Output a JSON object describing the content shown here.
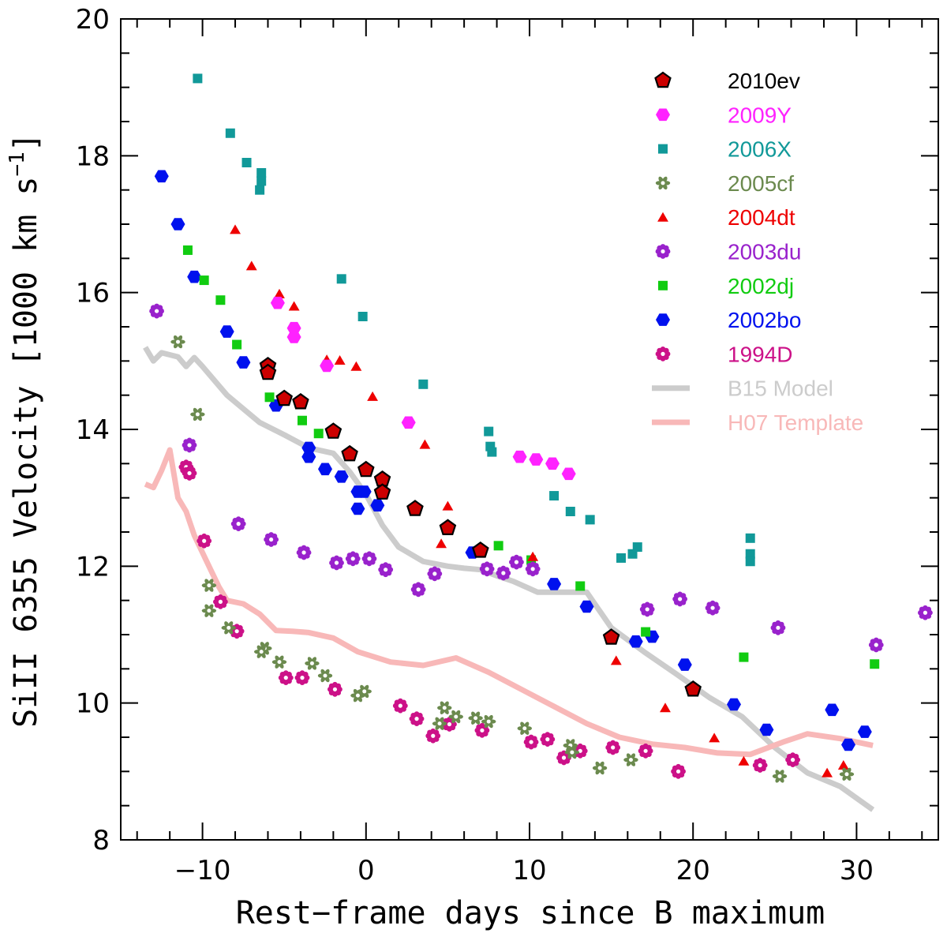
{
  "chart_data": {
    "type": "scatter",
    "xlabel": "Rest−frame days since B maximum",
    "ylabel_main": "SiII 6355 Velocity [1000 km s",
    "ylabel_sup": "−1",
    "ylabel_close": "]",
    "xlim": [
      -15,
      35
    ],
    "ylim": [
      8,
      20
    ],
    "x_ticks": [
      -10,
      0,
      10,
      20,
      30
    ],
    "y_ticks": [
      8,
      10,
      12,
      14,
      16,
      18,
      20
    ],
    "x_tick_labels": [
      "−10",
      "0",
      "10",
      "20",
      "30"
    ],
    "y_tick_labels": [
      "8",
      "10",
      "12",
      "14",
      "16",
      "18",
      "20"
    ],
    "legend_position": "top-right",
    "series": [
      {
        "name": "2010ev",
        "marker": "pentagon",
        "color": "#cc0000",
        "stroke": "#000000",
        "label_color": "#000000",
        "points": [
          [
            -6,
            14.93
          ],
          [
            -6,
            14.83
          ],
          [
            -5,
            14.45
          ],
          [
            -4,
            14.4
          ],
          [
            -2,
            13.97
          ],
          [
            -1,
            13.64
          ],
          [
            0,
            13.41
          ],
          [
            1,
            13.27
          ],
          [
            1,
            13.08
          ],
          [
            3,
            12.84
          ],
          [
            5,
            12.56
          ],
          [
            7,
            12.23
          ],
          [
            15,
            10.96
          ],
          [
            20,
            10.2
          ]
        ]
      },
      {
        "name": "2009Y",
        "marker": "hexagon",
        "color": "#ff22ff",
        "label_color": "#ff22ff",
        "points": [
          [
            -5.4,
            15.85
          ],
          [
            -4.4,
            15.48
          ],
          [
            -4.4,
            15.35
          ],
          [
            -2.4,
            14.93
          ],
          [
            2.6,
            14.1
          ],
          [
            9.4,
            13.6
          ],
          [
            10.4,
            13.56
          ],
          [
            11.4,
            13.5
          ],
          [
            12.4,
            13.35
          ]
        ]
      },
      {
        "name": "2006X",
        "marker": "square",
        "color": "#119999",
        "label_color": "#119999",
        "points": [
          [
            -10.3,
            19.13
          ],
          [
            -8.3,
            18.33
          ],
          [
            -7.3,
            17.9
          ],
          [
            -6.4,
            17.75
          ],
          [
            -6.4,
            17.63
          ],
          [
            -6.5,
            17.5
          ],
          [
            -1.5,
            16.2
          ],
          [
            -0.2,
            15.65
          ],
          [
            3.5,
            14.66
          ],
          [
            7.5,
            13.97
          ],
          [
            7.6,
            13.75
          ],
          [
            7.7,
            13.67
          ],
          [
            11.5,
            13.03
          ],
          [
            12.5,
            12.8
          ],
          [
            13.7,
            12.68
          ],
          [
            15.6,
            12.12
          ],
          [
            16.3,
            12.18
          ],
          [
            16.6,
            12.28
          ],
          [
            23.5,
            12.41
          ],
          [
            23.5,
            12.18
          ],
          [
            23.5,
            12.07
          ]
        ]
      },
      {
        "name": "2005cf",
        "marker": "star",
        "color": "#6b8a4e",
        "label_color": "#6b8a4e",
        "points": [
          [
            -11.5,
            15.28
          ],
          [
            -10.3,
            14.22
          ],
          [
            -9.6,
            11.72
          ],
          [
            -9.6,
            11.35
          ],
          [
            -8.4,
            11.1
          ],
          [
            -6.2,
            10.8
          ],
          [
            -6.4,
            10.75
          ],
          [
            -5.3,
            10.6
          ],
          [
            -3.3,
            10.58
          ],
          [
            -2.5,
            10.4
          ],
          [
            -0.5,
            10.11
          ],
          [
            -0.1,
            10.17
          ],
          [
            4.5,
            9.7
          ],
          [
            4.8,
            9.93
          ],
          [
            5.5,
            9.8
          ],
          [
            6.7,
            9.78
          ],
          [
            7.5,
            9.73
          ],
          [
            9.7,
            9.63
          ],
          [
            12.5,
            9.38
          ],
          [
            12.6,
            9.28
          ],
          [
            14.3,
            9.05
          ],
          [
            16.2,
            9.17
          ],
          [
            25.3,
            8.93
          ],
          [
            29.4,
            8.96
          ]
        ]
      },
      {
        "name": "2004dt",
        "marker": "triangle",
        "color": "#ee0000",
        "label_color": "#ee0000",
        "points": [
          [
            -8,
            16.92
          ],
          [
            -7,
            16.39
          ],
          [
            -5.3,
            15.98
          ],
          [
            -4.4,
            15.8
          ],
          [
            -2.4,
            15.02
          ],
          [
            -1.6,
            15.01
          ],
          [
            -0.6,
            14.92
          ],
          [
            0.4,
            14.48
          ],
          [
            3.6,
            13.78
          ],
          [
            5,
            12.88
          ],
          [
            4.6,
            12.33
          ],
          [
            10.2,
            12.14
          ],
          [
            15.3,
            10.62
          ],
          [
            18.3,
            9.93
          ],
          [
            21.3,
            9.49
          ],
          [
            23.1,
            9.15
          ],
          [
            28.2,
            8.98
          ],
          [
            29.2,
            9.09
          ]
        ]
      },
      {
        "name": "2003du",
        "marker": "flower",
        "color": "#9922cc",
        "label_color": "#9922cc",
        "points": [
          [
            -12.8,
            15.73
          ],
          [
            -10.8,
            13.77
          ],
          [
            -7.8,
            12.62
          ],
          [
            -5.8,
            12.39
          ],
          [
            -3.8,
            12.2
          ],
          [
            -1.8,
            12.05
          ],
          [
            -0.8,
            12.11
          ],
          [
            0.2,
            12.11
          ],
          [
            1.2,
            11.95
          ],
          [
            3.2,
            11.66
          ],
          [
            4.2,
            11.89
          ],
          [
            7.4,
            11.96
          ],
          [
            8.4,
            11.9
          ],
          [
            9.2,
            12.06
          ],
          [
            10.2,
            11.96
          ],
          [
            17.2,
            11.37
          ],
          [
            19.2,
            11.52
          ],
          [
            21.2,
            11.39
          ],
          [
            25.2,
            11.1
          ],
          [
            31.2,
            10.85
          ],
          [
            34.2,
            11.32
          ]
        ]
      },
      {
        "name": "2002dj",
        "marker": "square",
        "color": "#11cc11",
        "label_color": "#11cc11",
        "points": [
          [
            -10.9,
            16.62
          ],
          [
            -9.9,
            16.18
          ],
          [
            -8.9,
            15.89
          ],
          [
            -7.9,
            15.24
          ],
          [
            -5.9,
            14.47
          ],
          [
            -3.9,
            14.13
          ],
          [
            -2.9,
            13.94
          ],
          [
            8.1,
            12.3
          ],
          [
            10.1,
            12.09
          ],
          [
            13.1,
            11.71
          ],
          [
            17.1,
            11.04
          ],
          [
            23.1,
            10.67
          ],
          [
            31.1,
            10.57
          ]
        ]
      },
      {
        "name": "2002bo",
        "marker": "hexagon",
        "color": "#0011ee",
        "label_color": "#0011ee",
        "points": [
          [
            -12.5,
            17.7
          ],
          [
            -11.5,
            17
          ],
          [
            -10.5,
            16.23
          ],
          [
            -8.5,
            15.43
          ],
          [
            -7.5,
            14.98
          ],
          [
            -5.5,
            14.35
          ],
          [
            -3.5,
            13.73
          ],
          [
            -3.5,
            13.6
          ],
          [
            -2.5,
            13.42
          ],
          [
            -1.5,
            13.31
          ],
          [
            -0.5,
            13.09
          ],
          [
            -0.1,
            13.09
          ],
          [
            -0.5,
            12.84
          ],
          [
            0.7,
            12.89
          ],
          [
            6.5,
            12.2
          ],
          [
            11.5,
            11.74
          ],
          [
            13.5,
            11.41
          ],
          [
            16.5,
            10.9
          ],
          [
            17.5,
            10.97
          ],
          [
            19.5,
            10.56
          ],
          [
            22.5,
            9.98
          ],
          [
            24.5,
            9.61
          ],
          [
            28.5,
            9.9
          ],
          [
            29.5,
            9.39
          ],
          [
            30.5,
            9.58
          ]
        ]
      },
      {
        "name": "1994D",
        "marker": "flower",
        "color": "#cc1188",
        "label_color": "#cc1188",
        "points": [
          [
            -11,
            13.45
          ],
          [
            -10.8,
            13.36
          ],
          [
            -9.9,
            12.37
          ],
          [
            -8.9,
            11.48
          ],
          [
            -7.9,
            11.05
          ],
          [
            -4.9,
            10.37
          ],
          [
            -3.9,
            10.37
          ],
          [
            -1.9,
            10.2
          ],
          [
            2.1,
            9.96
          ],
          [
            3.1,
            9.77
          ],
          [
            4.1,
            9.52
          ],
          [
            5.1,
            9.69
          ],
          [
            7.1,
            9.6
          ],
          [
            10.1,
            9.43
          ],
          [
            11.1,
            9.47
          ],
          [
            12.1,
            9.2
          ],
          [
            13.1,
            9.3
          ],
          [
            15.1,
            9.35
          ],
          [
            17.1,
            9.3
          ],
          [
            19.1,
            9.0
          ],
          [
            24.1,
            9.09
          ],
          [
            26.1,
            9.17
          ]
        ]
      }
    ],
    "lines": [
      {
        "name": "B15 Model",
        "color": "#cccccc",
        "label_color": "#cccccc",
        "points": [
          [
            -13.5,
            15.2
          ],
          [
            -13,
            15.0
          ],
          [
            -12.5,
            15.12
          ],
          [
            -11.5,
            15.06
          ],
          [
            -11,
            14.92
          ],
          [
            -10.5,
            15.05
          ],
          [
            -10,
            14.92
          ],
          [
            -8.5,
            14.5
          ],
          [
            -6.5,
            14.1
          ],
          [
            -5,
            13.92
          ],
          [
            -3.5,
            13.73
          ],
          [
            -2,
            13.65
          ],
          [
            -1,
            13.38
          ],
          [
            0,
            13.05
          ],
          [
            1,
            12.6
          ],
          [
            2,
            12.28
          ],
          [
            3.5,
            12.07
          ],
          [
            5,
            12.0
          ],
          [
            6,
            11.97
          ],
          [
            7,
            11.95
          ],
          [
            8,
            11.86
          ],
          [
            9,
            11.78
          ],
          [
            10.5,
            11.62
          ],
          [
            12,
            11.62
          ],
          [
            13.5,
            11.62
          ],
          [
            15,
            11.1
          ],
          [
            17,
            10.75
          ],
          [
            19,
            10.42
          ],
          [
            21,
            10.08
          ],
          [
            23,
            9.8
          ],
          [
            25,
            9.35
          ],
          [
            27,
            8.98
          ],
          [
            29,
            8.78
          ],
          [
            31,
            8.44
          ]
        ]
      },
      {
        "name": "H07 Template",
        "color": "#f8b8b8",
        "label_color": "#f8b8b8",
        "points": [
          [
            -13.5,
            13.2
          ],
          [
            -13,
            13.15
          ],
          [
            -12.5,
            13.4
          ],
          [
            -12,
            13.7
          ],
          [
            -11.5,
            13.0
          ],
          [
            -11,
            12.8
          ],
          [
            -10.5,
            12.45
          ],
          [
            -9.8,
            12.1
          ],
          [
            -9,
            11.7
          ],
          [
            -8.5,
            11.5
          ],
          [
            -7.5,
            11.45
          ],
          [
            -6.5,
            11.3
          ],
          [
            -5.5,
            11.06
          ],
          [
            -4.5,
            11.05
          ],
          [
            -3.5,
            11.03
          ],
          [
            -2,
            10.95
          ],
          [
            -0.5,
            10.75
          ],
          [
            1.5,
            10.6
          ],
          [
            3.5,
            10.55
          ],
          [
            5.5,
            10.66
          ],
          [
            7.5,
            10.45
          ],
          [
            9.5,
            10.2
          ],
          [
            11.5,
            9.95
          ],
          [
            13.5,
            9.7
          ],
          [
            15.5,
            9.5
          ],
          [
            17.5,
            9.4
          ],
          [
            19.5,
            9.35
          ],
          [
            21.5,
            9.27
          ],
          [
            23.5,
            9.25
          ],
          [
            25.5,
            9.43
          ],
          [
            27,
            9.55
          ],
          [
            29,
            9.48
          ],
          [
            31,
            9.38
          ]
        ]
      }
    ]
  }
}
